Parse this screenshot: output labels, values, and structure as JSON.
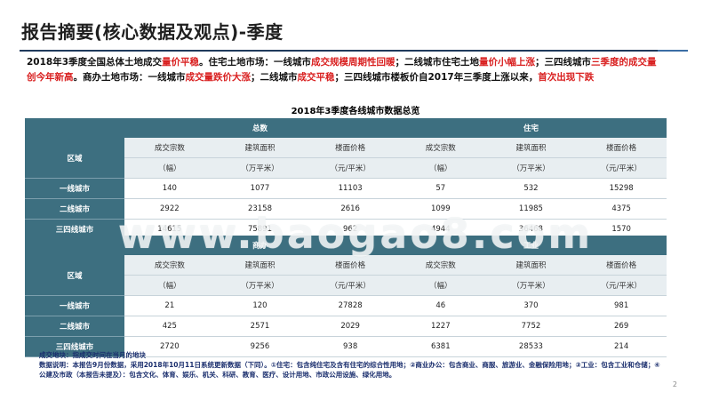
{
  "title": "报告摘要(核心数据及观点)-季度",
  "summary": [
    {
      "t": "2018年3季度全国总体土地成交",
      "hl": false
    },
    {
      "t": "量价平稳",
      "hl": true
    },
    {
      "t": "。住宅土地市场：一线城市",
      "hl": false
    },
    {
      "t": "成交规模周期性回暖",
      "hl": true
    },
    {
      "t": "；二线城市住宅土地",
      "hl": false
    },
    {
      "t": "量价小幅上涨",
      "hl": true
    },
    {
      "t": "；三四线城市",
      "hl": false
    },
    {
      "t": "三季度的成交量创今年新高",
      "hl": true
    },
    {
      "t": "。商办土地市场：一线城市",
      "hl": false
    },
    {
      "t": "成交量跌价大涨",
      "hl": true
    },
    {
      "t": "；二线城市",
      "hl": false
    },
    {
      "t": "成交平稳",
      "hl": true
    },
    {
      "t": "；三四线城市楼板价自2017年三季度上涨以来，",
      "hl": false
    },
    {
      "t": "首次出现下跌",
      "hl": true
    }
  ],
  "table_title": "2018年3季度各线城市数据总览",
  "row_header": "区域",
  "col_labels": [
    "成交宗数",
    "建筑面积",
    "楼面价格",
    "成交宗数",
    "建筑面积",
    "楼面价格"
  ],
  "unit_labels": [
    "（幅）",
    "（万平米）",
    "（元/平米）",
    "（幅）",
    "（万平米）",
    "（元/平米）"
  ],
  "block1": {
    "group1": "总数",
    "group2": "住宅",
    "rows": [
      {
        "city": "一线城市",
        "values": [
          "140",
          "1077",
          "11103",
          "57",
          "532",
          "15298"
        ]
      },
      {
        "city": "二线城市",
        "values": [
          "2922",
          "23158",
          "2616",
          "1099",
          "11985",
          "4375"
        ]
      },
      {
        "city": "三四线城市",
        "values": [
          "14615",
          "75891",
          "962",
          "4944",
          "36468",
          "1570"
        ]
      }
    ]
  },
  "block2": {
    "group1": "商办",
    "group2": "工业",
    "rows": [
      {
        "city": "一线城市",
        "values": [
          "21",
          "120",
          "27828",
          "46",
          "370",
          "981"
        ]
      },
      {
        "city": "二线城市",
        "values": [
          "425",
          "2571",
          "2029",
          "1227",
          "7752",
          "269"
        ]
      },
      {
        "city": "三四线城市",
        "values": [
          "2720",
          "9256",
          "938",
          "6381",
          "28533",
          "214"
        ]
      }
    ]
  },
  "watermark": "www.baogao8.com",
  "notes": [
    "成交地块：指成交时间在当月的地块",
    "数据说明：本报告9月份数据，采用2018年10月11日系统更新数据（下同）。①住宅：包含纯住宅及含有住宅的综合性用地；②商业办公：包含商业、商服、旅游业、金融保险用地；③工业：包含工业和仓储；④公建及市政（本报告未提及）：包含文化、体育、娱乐、机关、科研、教育、医疗、设计用地、市政公用设施、绿化用地。"
  ],
  "page_number": "2"
}
